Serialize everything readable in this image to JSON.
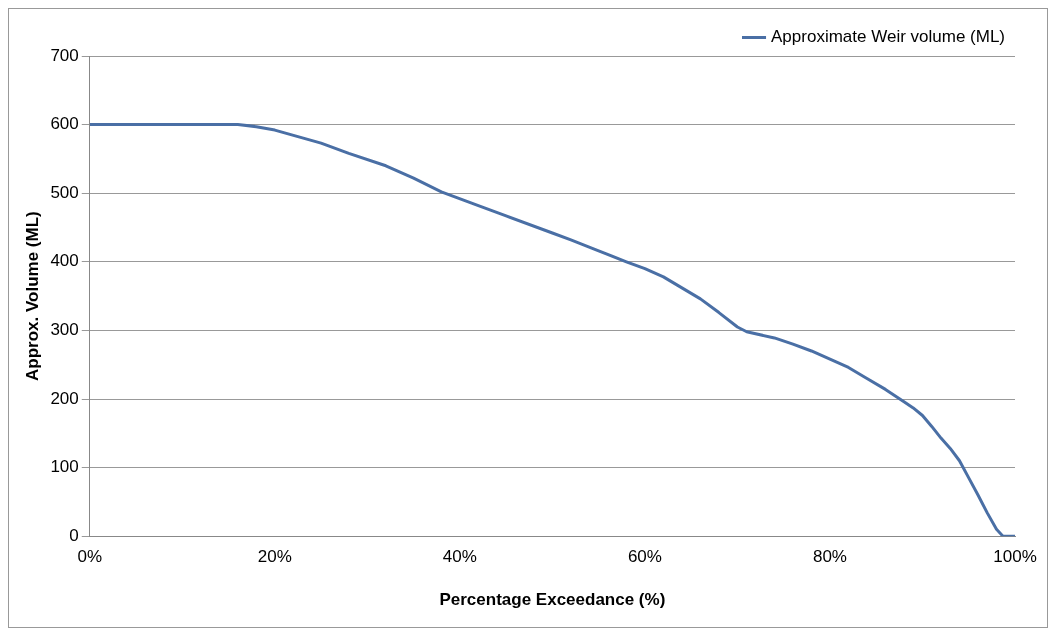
{
  "chart_data": {
    "type": "line",
    "xlabel": "Percentage Exceedance (%)",
    "ylabel": "Approx. Volume (ML)",
    "x": [
      0,
      16,
      18,
      20,
      25,
      28,
      32,
      35,
      38,
      42,
      45,
      50,
      52,
      55,
      58,
      60,
      62,
      64,
      66,
      68,
      70,
      71,
      74,
      76,
      78,
      80,
      82,
      84,
      86,
      88,
      89,
      90,
      91,
      92,
      93,
      94,
      95,
      96,
      97,
      98,
      98.7,
      100
    ],
    "series": [
      {
        "name": "Approximate Weir volume (ML)",
        "color": "#4a6fa5",
        "values": [
          600,
          600,
          597,
          592,
          573,
          558,
          540,
          522,
          502,
          482,
          467,
          442,
          432,
          416,
          400,
          390,
          378,
          362,
          346,
          326,
          305,
          298,
          289,
          280,
          270,
          258,
          246,
          230,
          214,
          196,
          187,
          176,
          160,
          143,
          128,
          110,
          85,
          60,
          34,
          10,
          0,
          0
        ]
      }
    ],
    "xlim": [
      0,
      100
    ],
    "xticks": [
      {
        "value": 0,
        "label": "0%"
      },
      {
        "value": 20,
        "label": "20%"
      },
      {
        "value": 40,
        "label": "40%"
      },
      {
        "value": 60,
        "label": "60%"
      },
      {
        "value": 80,
        "label": "80%"
      },
      {
        "value": 100,
        "label": "100%"
      }
    ],
    "ylim": [
      0,
      700
    ],
    "yticks": [
      0,
      100,
      200,
      300,
      400,
      500,
      600,
      700
    ],
    "grid": "y",
    "legend": "top right",
    "marker": "none",
    "line_style": "solid"
  }
}
